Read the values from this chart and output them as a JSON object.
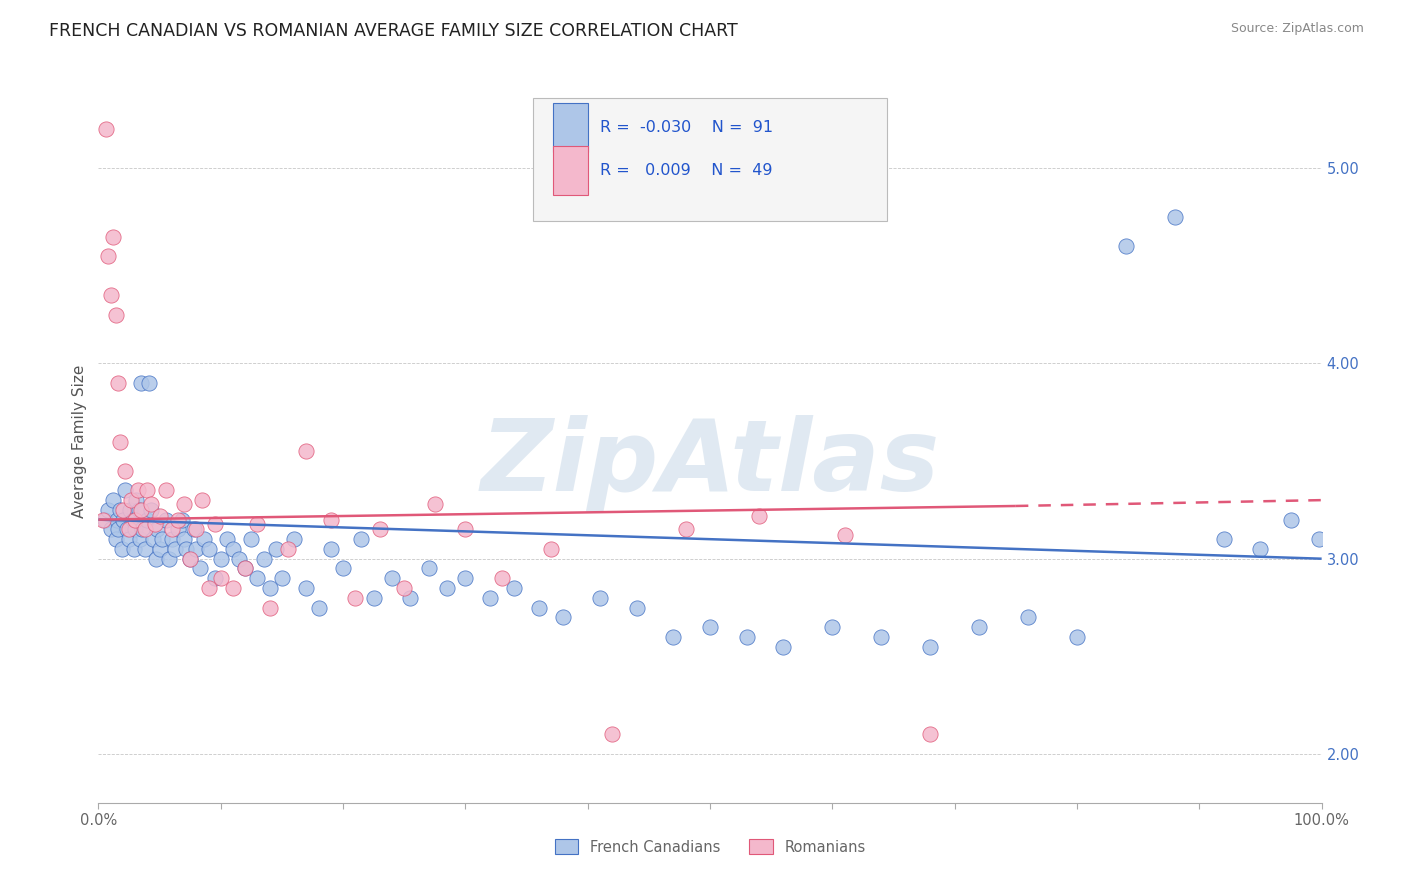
{
  "title": "FRENCH CANADIAN VS ROMANIAN AVERAGE FAMILY SIZE CORRELATION CHART",
  "source": "Source: ZipAtlas.com",
  "ylabel": "Average Family Size",
  "xlim": [
    0,
    1
  ],
  "ylim": [
    1.75,
    5.45
  ],
  "yticks": [
    2.0,
    3.0,
    4.0,
    5.0
  ],
  "xtick_positions": [
    0.0,
    0.1,
    0.2,
    0.3,
    0.4,
    0.5,
    0.6,
    0.7,
    0.8,
    0.9,
    1.0
  ],
  "xticklabels_show": {
    "0.0": "0.0%",
    "1.0": "100.0%"
  },
  "legend_label1": "French Canadians",
  "legend_label2": "Romanians",
  "r1": "-0.030",
  "n1": "91",
  "r2": "0.009",
  "n2": "49",
  "color1": "#aec6e8",
  "color2": "#f4b8cc",
  "line_color1": "#4472c4",
  "line_color2": "#e05878",
  "watermark": "ZipAtlas",
  "watermark_color": "#c8d8e8",
  "background_color": "#ffffff",
  "grid_color": "#c8c8c8",
  "blue_trend_x0": 0.0,
  "blue_trend_y0": 3.2,
  "blue_trend_x1": 1.0,
  "blue_trend_y1": 3.0,
  "pink_trend_x0": 0.0,
  "pink_trend_y0": 3.2,
  "pink_trend_x1": 0.75,
  "pink_trend_y1": 3.27,
  "pink_trend_dash_x0": 0.75,
  "pink_trend_dash_x1": 1.0,
  "pink_trend_dash_y0": 3.27,
  "pink_trend_dash_y1": 3.3,
  "title_color": "#222222",
  "axis_label_color": "#555555",
  "tick_label_color": "#666666",
  "right_ytick_color": "#4472c4",
  "legend_text_color": "#2255cc",
  "blue_scatter_x": [
    0.005,
    0.008,
    0.01,
    0.012,
    0.014,
    0.015,
    0.016,
    0.018,
    0.019,
    0.02,
    0.022,
    0.023,
    0.025,
    0.026,
    0.028,
    0.029,
    0.03,
    0.031,
    0.033,
    0.034,
    0.035,
    0.036,
    0.038,
    0.04,
    0.041,
    0.043,
    0.045,
    0.047,
    0.048,
    0.05,
    0.052,
    0.055,
    0.058,
    0.06,
    0.063,
    0.065,
    0.068,
    0.07,
    0.072,
    0.075,
    0.078,
    0.08,
    0.083,
    0.086,
    0.09,
    0.095,
    0.1,
    0.105,
    0.11,
    0.115,
    0.12,
    0.125,
    0.13,
    0.135,
    0.14,
    0.145,
    0.15,
    0.16,
    0.17,
    0.18,
    0.19,
    0.2,
    0.215,
    0.225,
    0.24,
    0.255,
    0.27,
    0.285,
    0.3,
    0.32,
    0.34,
    0.36,
    0.38,
    0.41,
    0.44,
    0.47,
    0.5,
    0.53,
    0.56,
    0.6,
    0.64,
    0.68,
    0.72,
    0.76,
    0.8,
    0.84,
    0.88,
    0.92,
    0.95,
    0.975,
    0.998
  ],
  "blue_scatter_y": [
    3.2,
    3.25,
    3.15,
    3.3,
    3.1,
    3.2,
    3.15,
    3.25,
    3.05,
    3.2,
    3.35,
    3.15,
    3.1,
    3.25,
    3.2,
    3.05,
    3.15,
    3.3,
    3.25,
    3.1,
    3.9,
    3.15,
    3.05,
    3.2,
    3.9,
    3.25,
    3.1,
    3.0,
    3.15,
    3.05,
    3.1,
    3.2,
    3.0,
    3.1,
    3.05,
    3.15,
    3.2,
    3.1,
    3.05,
    3.0,
    3.15,
    3.05,
    2.95,
    3.1,
    3.05,
    2.9,
    3.0,
    3.1,
    3.05,
    3.0,
    2.95,
    3.1,
    2.9,
    3.0,
    2.85,
    3.05,
    2.9,
    3.1,
    2.85,
    2.75,
    3.05,
    2.95,
    3.1,
    2.8,
    2.9,
    2.8,
    2.95,
    2.85,
    2.9,
    2.8,
    2.85,
    2.75,
    2.7,
    2.8,
    2.75,
    2.6,
    2.65,
    2.6,
    2.55,
    2.65,
    2.6,
    2.55,
    2.65,
    2.7,
    2.6,
    4.6,
    4.75,
    3.1,
    3.05,
    3.2,
    3.1
  ],
  "pink_scatter_x": [
    0.004,
    0.006,
    0.008,
    0.01,
    0.012,
    0.014,
    0.016,
    0.018,
    0.02,
    0.022,
    0.025,
    0.027,
    0.03,
    0.032,
    0.035,
    0.038,
    0.04,
    0.043,
    0.046,
    0.05,
    0.055,
    0.06,
    0.065,
    0.07,
    0.075,
    0.08,
    0.085,
    0.09,
    0.095,
    0.1,
    0.11,
    0.12,
    0.13,
    0.14,
    0.155,
    0.17,
    0.19,
    0.21,
    0.23,
    0.25,
    0.275,
    0.3,
    0.33,
    0.37,
    0.42,
    0.48,
    0.54,
    0.61,
    0.68
  ],
  "pink_scatter_y": [
    3.2,
    5.2,
    4.55,
    4.35,
    4.65,
    4.25,
    3.9,
    3.6,
    3.25,
    3.45,
    3.15,
    3.3,
    3.2,
    3.35,
    3.25,
    3.15,
    3.35,
    3.28,
    3.18,
    3.22,
    3.35,
    3.15,
    3.2,
    3.28,
    3.0,
    3.15,
    3.3,
    2.85,
    3.18,
    2.9,
    2.85,
    2.95,
    3.18,
    2.75,
    3.05,
    3.55,
    3.2,
    2.8,
    3.15,
    2.85,
    3.28,
    3.15,
    2.9,
    3.05,
    2.1,
    3.15,
    3.22,
    3.12,
    2.1
  ]
}
